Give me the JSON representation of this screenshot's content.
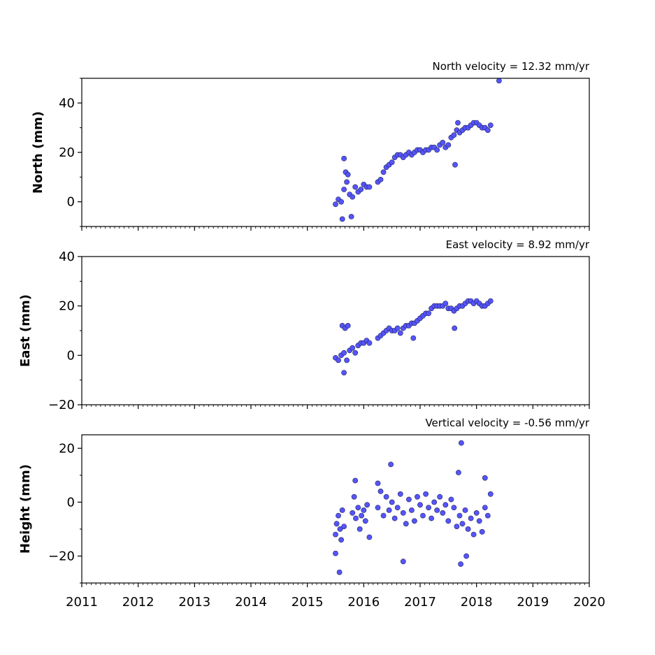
{
  "chart_data": [
    {
      "type": "scatter",
      "title": "North velocity = 12.32 mm/yr",
      "xlabel": "",
      "ylabel": "North (mm)",
      "xlim": [
        2011,
        2020
      ],
      "ylim": [
        -10,
        50
      ],
      "yticks": [
        0,
        20,
        40
      ],
      "xticks": [],
      "marker_color": "#5555ff",
      "marker_edge": "#222255",
      "grid": false,
      "points": {
        "x": [
          2015.5,
          2015.55,
          2015.6,
          2015.65,
          2015.7,
          2015.75,
          2015.8,
          2015.85,
          2015.9,
          2015.95,
          2016.0,
          2016.05,
          2016.1,
          2016.25,
          2016.3,
          2016.35,
          2016.4,
          2016.45,
          2016.5,
          2016.55,
          2016.6,
          2016.65,
          2016.7,
          2016.75,
          2016.8,
          2016.85,
          2016.9,
          2016.95,
          2017.0,
          2017.05,
          2017.1,
          2017.15,
          2017.2,
          2017.25,
          2017.3,
          2017.35,
          2017.4,
          2017.45,
          2017.5,
          2017.55,
          2017.6,
          2017.65,
          2017.7,
          2017.75,
          2017.8,
          2017.85,
          2017.9,
          2017.95,
          2018.0,
          2018.05,
          2018.1,
          2018.15,
          2018.2,
          2018.25,
          2015.65,
          2015.68,
          2015.72,
          2015.62,
          2015.78,
          2017.62,
          2017.67,
          2018.4
        ],
        "y": [
          -1,
          1,
          0,
          5,
          8,
          3,
          2,
          6,
          4,
          5,
          7,
          6,
          6,
          8,
          9,
          12,
          14,
          15,
          16,
          18,
          19,
          19,
          18,
          19,
          20,
          19,
          20,
          21,
          21,
          20,
          21,
          21,
          22,
          22,
          21,
          23,
          24,
          22,
          23,
          26,
          27,
          29,
          28,
          29,
          30,
          30,
          31,
          32,
          32,
          31,
          30,
          30,
          29,
          31,
          17.5,
          12,
          11,
          -7,
          -6,
          15,
          32,
          49
        ]
      }
    },
    {
      "type": "scatter",
      "title": "East velocity = 8.92 mm/yr",
      "xlabel": "",
      "ylabel": "East (mm)",
      "xlim": [
        2011,
        2020
      ],
      "ylim": [
        -20,
        40
      ],
      "yticks": [
        -20,
        0,
        20,
        40
      ],
      "xticks": [],
      "marker_color": "#5555ff",
      "marker_edge": "#222255",
      "grid": false,
      "points": {
        "x": [
          2015.5,
          2015.55,
          2015.6,
          2015.65,
          2015.7,
          2015.75,
          2015.8,
          2015.85,
          2015.9,
          2015.95,
          2016.0,
          2016.05,
          2016.1,
          2016.25,
          2016.3,
          2016.35,
          2016.4,
          2016.45,
          2016.5,
          2016.55,
          2016.6,
          2016.65,
          2016.7,
          2016.75,
          2016.8,
          2016.85,
          2016.9,
          2016.95,
          2017.0,
          2017.05,
          2017.1,
          2017.15,
          2017.2,
          2017.25,
          2017.3,
          2017.35,
          2017.4,
          2017.45,
          2017.5,
          2017.55,
          2017.6,
          2017.65,
          2017.7,
          2017.75,
          2017.8,
          2017.85,
          2017.9,
          2017.95,
          2018.0,
          2018.05,
          2018.1,
          2018.15,
          2018.2,
          2018.25,
          2015.62,
          2015.67,
          2015.72,
          2015.65,
          2016.88,
          2017.61
        ],
        "y": [
          -1,
          -2,
          0,
          1,
          -2,
          2,
          3,
          1,
          4,
          5,
          5,
          6,
          5,
          7,
          8,
          9,
          10,
          11,
          10,
          10,
          11,
          9,
          11,
          12,
          12,
          13,
          13,
          14,
          15,
          16,
          17,
          17,
          19,
          20,
          20,
          20,
          20,
          21,
          19,
          19,
          18,
          19,
          20,
          20,
          21,
          22,
          22,
          21,
          22,
          21,
          20,
          20,
          21,
          22,
          12,
          11,
          12,
          -7,
          7,
          11
        ]
      }
    },
    {
      "type": "scatter",
      "title": "Vertical velocity = -0.56 mm/yr",
      "xlabel": "",
      "ylabel": "Height (mm)",
      "xlim": [
        2011,
        2020
      ],
      "ylim": [
        -30,
        25
      ],
      "yticks": [
        -20,
        0,
        20
      ],
      "xticks": [
        "2011",
        "2012",
        "2013",
        "2014",
        "2015",
        "2016",
        "2017",
        "2018",
        "2019",
        "2020"
      ],
      "marker_color": "#5555ff",
      "marker_edge": "#222255",
      "grid": false,
      "points": {
        "x": [
          2015.5,
          2015.52,
          2015.55,
          2015.58,
          2015.6,
          2015.62,
          2015.65,
          2015.8,
          2015.83,
          2015.86,
          2015.9,
          2015.93,
          2015.96,
          2016.0,
          2016.03,
          2016.06,
          2016.1,
          2016.25,
          2016.3,
          2016.35,
          2016.4,
          2016.45,
          2016.5,
          2016.55,
          2016.6,
          2016.65,
          2016.7,
          2016.75,
          2016.8,
          2016.85,
          2016.9,
          2016.95,
          2017.0,
          2017.05,
          2017.1,
          2017.15,
          2017.2,
          2017.25,
          2017.3,
          2017.35,
          2017.4,
          2017.45,
          2017.5,
          2017.55,
          2017.6,
          2017.65,
          2017.7,
          2017.75,
          2017.8,
          2017.85,
          2017.9,
          2017.95,
          2018.0,
          2018.05,
          2018.1,
          2018.15,
          2018.2,
          2018.25,
          2015.57,
          2015.85,
          2015.5,
          2016.7,
          2017.73,
          2017.72,
          2017.68,
          2017.82,
          2018.15,
          2016.48,
          2016.25
        ],
        "y": [
          -12,
          -8,
          -5,
          -10,
          -14,
          -3,
          -9,
          -4,
          2,
          -6,
          -2,
          -10,
          -5,
          -3,
          -7,
          -1,
          -13,
          -2,
          4,
          -5,
          2,
          -3,
          0,
          -6,
          -2,
          3,
          -4,
          -8,
          1,
          -3,
          -7,
          2,
          -1,
          -5,
          3,
          -2,
          -6,
          0,
          -3,
          2,
          -4,
          -1,
          -7,
          1,
          -2,
          -9,
          -5,
          -8,
          -3,
          -10,
          -6,
          -12,
          -4,
          -7,
          -11,
          -2,
          -5,
          3,
          -26,
          8,
          -19,
          -22,
          22,
          -23,
          11,
          -20,
          9,
          14,
          7
        ]
      }
    }
  ]
}
